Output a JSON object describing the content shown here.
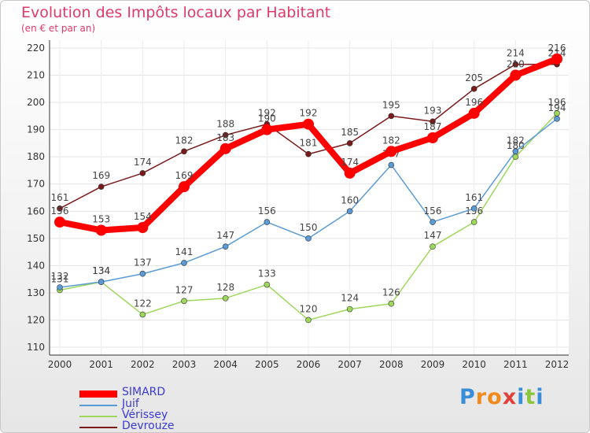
{
  "chart_data": {
    "type": "line",
    "title": "Evolution des Impôts locaux par Habitant",
    "subtitle": "(en € et par an)",
    "x": [
      "2000",
      "2001",
      "2002",
      "2003",
      "2004",
      "2005",
      "2006",
      "2007",
      "2008",
      "2009",
      "2010",
      "2011",
      "2012"
    ],
    "ylim": [
      110,
      220
    ],
    "yticks": [
      110,
      120,
      130,
      140,
      150,
      160,
      170,
      180,
      190,
      200,
      210,
      220
    ],
    "grid": true,
    "legend_position": "bottom-left",
    "series": [
      {
        "name": "SIMARD",
        "color": "#ff0000",
        "values": [
          156,
          153,
          154,
          169,
          183,
          190,
          192,
          174,
          182,
          187,
          196,
          210,
          216
        ]
      },
      {
        "name": "Juif",
        "color": "#5b9bd5",
        "values": [
          132,
          134,
          137,
          141,
          147,
          156,
          150,
          160,
          177,
          156,
          161,
          182,
          194
        ]
      },
      {
        "name": "Vérissey",
        "color": "#9ed85a",
        "values": [
          131,
          134,
          122,
          127,
          128,
          133,
          120,
          124,
          126,
          147,
          156,
          180,
          196
        ]
      },
      {
        "name": "Devrouze",
        "color": "#7a1a1a",
        "values": [
          161,
          169,
          174,
          182,
          188,
          192,
          181,
          185,
          195,
          193,
          205,
          214,
          214
        ]
      }
    ]
  },
  "logo": {
    "letters": [
      "P",
      "r",
      "o",
      "x",
      "i",
      "t",
      "i"
    ],
    "colors": [
      "#3a8ed8",
      "#f08a1c",
      "#f08a1c",
      "#e0403a",
      "#3a8ed8",
      "#8cc63e",
      "#3a8ed8"
    ]
  }
}
